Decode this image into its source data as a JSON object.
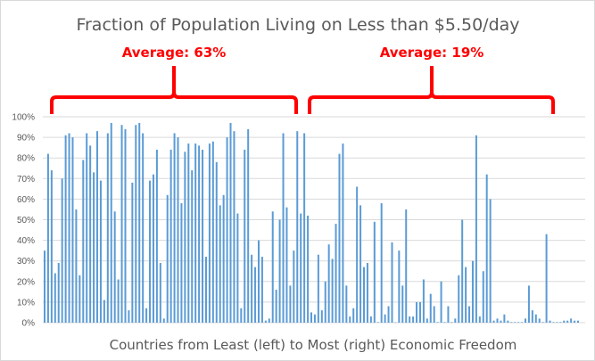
{
  "chart_data": {
    "type": "bar",
    "title": "Fraction of Population Living on Less than $5.50/day",
    "xlabel": "Countries from Least (left) to Most (right) Economic Freedom",
    "ylabel": "",
    "ylim": [
      0,
      100
    ],
    "yticks": [
      "0%",
      "10%",
      "20%",
      "30%",
      "40%",
      "50%",
      "60%",
      "70%",
      "80%",
      "90%",
      "100%"
    ],
    "grid": true,
    "bar_color": "#5b9bd5",
    "annotation_color": "#ff0000",
    "annotations": [
      {
        "text": "Average: 63%",
        "group": "left half"
      },
      {
        "text": "Average: 19%",
        "group": "right half"
      }
    ],
    "values": [
      35,
      82,
      74,
      24,
      29,
      70,
      91,
      92,
      90,
      55,
      23,
      79,
      92,
      86,
      73,
      93,
      69,
      11,
      92,
      97,
      54,
      21,
      96,
      94,
      6,
      68,
      96,
      97,
      92,
      7,
      69,
      72,
      84,
      29,
      2,
      62,
      84,
      92,
      90,
      58,
      83,
      87,
      74,
      87,
      86,
      84,
      32,
      87,
      88,
      78,
      57,
      62,
      90,
      97,
      93,
      53,
      7,
      84,
      94,
      33,
      27,
      40,
      32,
      1,
      2,
      54,
      16,
      50,
      92,
      56,
      18,
      35,
      93,
      53,
      92,
      52,
      5,
      4,
      33,
      6,
      20,
      38,
      31,
      48,
      82,
      87,
      18,
      3,
      7,
      66,
      57,
      27,
      29,
      3,
      49,
      0.3,
      58,
      4,
      8,
      39,
      0.2,
      35,
      18,
      55,
      3,
      3,
      10,
      10,
      21,
      2,
      14,
      8,
      0.3,
      20,
      0.3,
      8,
      0.3,
      2,
      23,
      50,
      27,
      8,
      30,
      91,
      3,
      25,
      72,
      60,
      1,
      2,
      1,
      4,
      1,
      0.3,
      0.3,
      0.3,
      0.3,
      2,
      18,
      6,
      4,
      2,
      0.3,
      43,
      1,
      0.3,
      0.3,
      0.3,
      1,
      1,
      2,
      1,
      1
    ]
  }
}
